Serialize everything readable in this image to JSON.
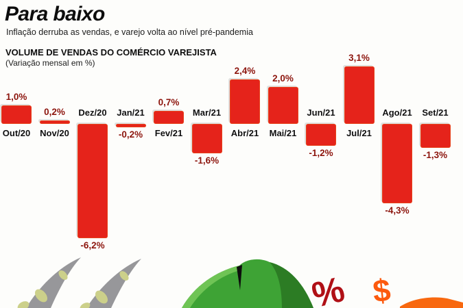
{
  "header": {
    "title": "Para baixo",
    "subtitle": "Inflação derruba as vendas, e varejo volta ao nível pré-pandemia"
  },
  "chart": {
    "heading": "VOLUME DE VENDAS DO COMÉRCIO VAREJISTA",
    "subheading": "(Variação mensal em %)"
  },
  "chart_data": {
    "type": "bar",
    "title": "VOLUME DE VENDAS DO COMÉRCIO VAREJISTA",
    "subtitle": "(Variação mensal em %)",
    "categories": [
      "Out/20",
      "Nov/20",
      "Dez/20",
      "Jan/21",
      "Fev/21",
      "Mar/21",
      "Abr/21",
      "Mai/21",
      "Jun/21",
      "Jul/21",
      "Ago/21",
      "Set/21"
    ],
    "values": [
      1.0,
      0.2,
      -6.2,
      -0.2,
      0.7,
      -1.6,
      2.4,
      2.0,
      -1.2,
      3.1,
      -4.3,
      -1.3
    ],
    "value_labels": [
      "1,0%",
      "0,2%",
      "-6,2%",
      "-0,2%",
      "0,7%",
      "-1,6%",
      "2,4%",
      "2,0%",
      "-1,2%",
      "3,1%",
      "-4,3%",
      "-1,3%"
    ],
    "bar_color": "#e5231b",
    "value_label_color": "#8c150c",
    "month_label_color": "#0f0f0f",
    "ylim": [
      -6.5,
      3.5
    ],
    "grid": false,
    "legend": false,
    "baseline": 0
  },
  "illustrations": {
    "items": [
      "gray-claws",
      "green-piggy-bank-top",
      "percent-symbol",
      "dollar-symbol",
      "orange-arrow"
    ],
    "percent_color": "#b01016",
    "dollar_color": "#fc5a0e"
  },
  "symbols": {
    "percent": "%",
    "dollar": "$"
  }
}
